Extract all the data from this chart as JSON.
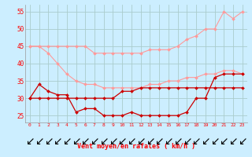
{
  "x": [
    0,
    1,
    2,
    3,
    4,
    5,
    6,
    7,
    8,
    9,
    10,
    11,
    12,
    13,
    14,
    15,
    16,
    17,
    18,
    19,
    20,
    21,
    22,
    23
  ],
  "line_rafales_top": [
    45,
    45,
    45,
    45,
    45,
    45,
    45,
    43,
    43,
    43,
    43,
    43,
    43,
    44,
    44,
    44,
    45,
    47,
    48,
    50,
    50,
    55,
    53,
    55
  ],
  "line_rafales_bot": [
    45,
    45,
    43,
    40,
    37,
    35,
    34,
    34,
    33,
    33,
    33,
    33,
    33,
    34,
    34,
    35,
    35,
    36,
    36,
    37,
    37,
    38,
    38,
    37
  ],
  "line_wind_top": [
    30,
    34,
    32,
    31,
    31,
    26,
    27,
    27,
    25,
    25,
    25,
    26,
    25,
    25,
    25,
    25,
    25,
    26,
    30,
    30,
    36,
    37,
    37,
    37
  ],
  "line_wind_bot": [
    30,
    30,
    30,
    30,
    30,
    30,
    30,
    30,
    30,
    30,
    32,
    32,
    33,
    33,
    33,
    33,
    33,
    33,
    33,
    33,
    33,
    33,
    33,
    33
  ],
  "bg_color": "#cceeff",
  "grid_color": "#aacccc",
  "color_light": "#ff9999",
  "color_dark": "#cc0000",
  "xlabel": "Vent moyen/en rafales ( km/h )",
  "yticks": [
    25,
    30,
    35,
    40,
    45,
    50,
    55
  ],
  "ylim": [
    23,
    57
  ],
  "xlim": [
    -0.5,
    23.5
  ]
}
